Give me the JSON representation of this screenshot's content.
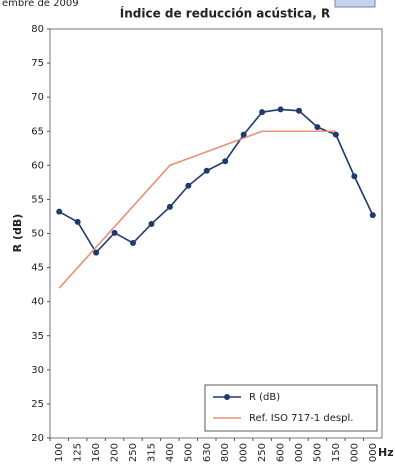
{
  "chart_data": {
    "type": "line",
    "header_note": "embre de 2009",
    "title": "Índice de reducción acústica, R",
    "y_label": "R (dB)",
    "x_label": "Hz",
    "categories": [
      "100",
      "125",
      "160",
      "200",
      "250",
      "315",
      "400",
      "500",
      "630",
      "800",
      "000",
      "250",
      "600",
      "000",
      "500",
      "150",
      "000",
      "000"
    ],
    "ylim": [
      20,
      80
    ],
    "yticks": [
      20,
      25,
      30,
      35,
      40,
      45,
      50,
      55,
      60,
      65,
      70,
      75,
      80
    ],
    "grid": false,
    "legend": "bottom-right",
    "series": [
      {
        "name": "R (dB)",
        "color": "#1f3a6e",
        "marker": true,
        "values": [
          53.2,
          51.7,
          47.2,
          50.1,
          48.6,
          51.4,
          53.9,
          57,
          59.2,
          60.6,
          64.5,
          67.8,
          68.2,
          68,
          65.6,
          64.5,
          58.4,
          52.7
        ]
      },
      {
        "name": "Ref. ISO 717-1 despl.",
        "color": "#e8907a",
        "marker": false,
        "values": [
          42,
          45,
          48,
          51,
          54,
          57,
          60,
          61,
          62,
          63,
          64,
          65,
          65,
          65,
          65,
          65,
          null,
          null
        ]
      }
    ]
  }
}
